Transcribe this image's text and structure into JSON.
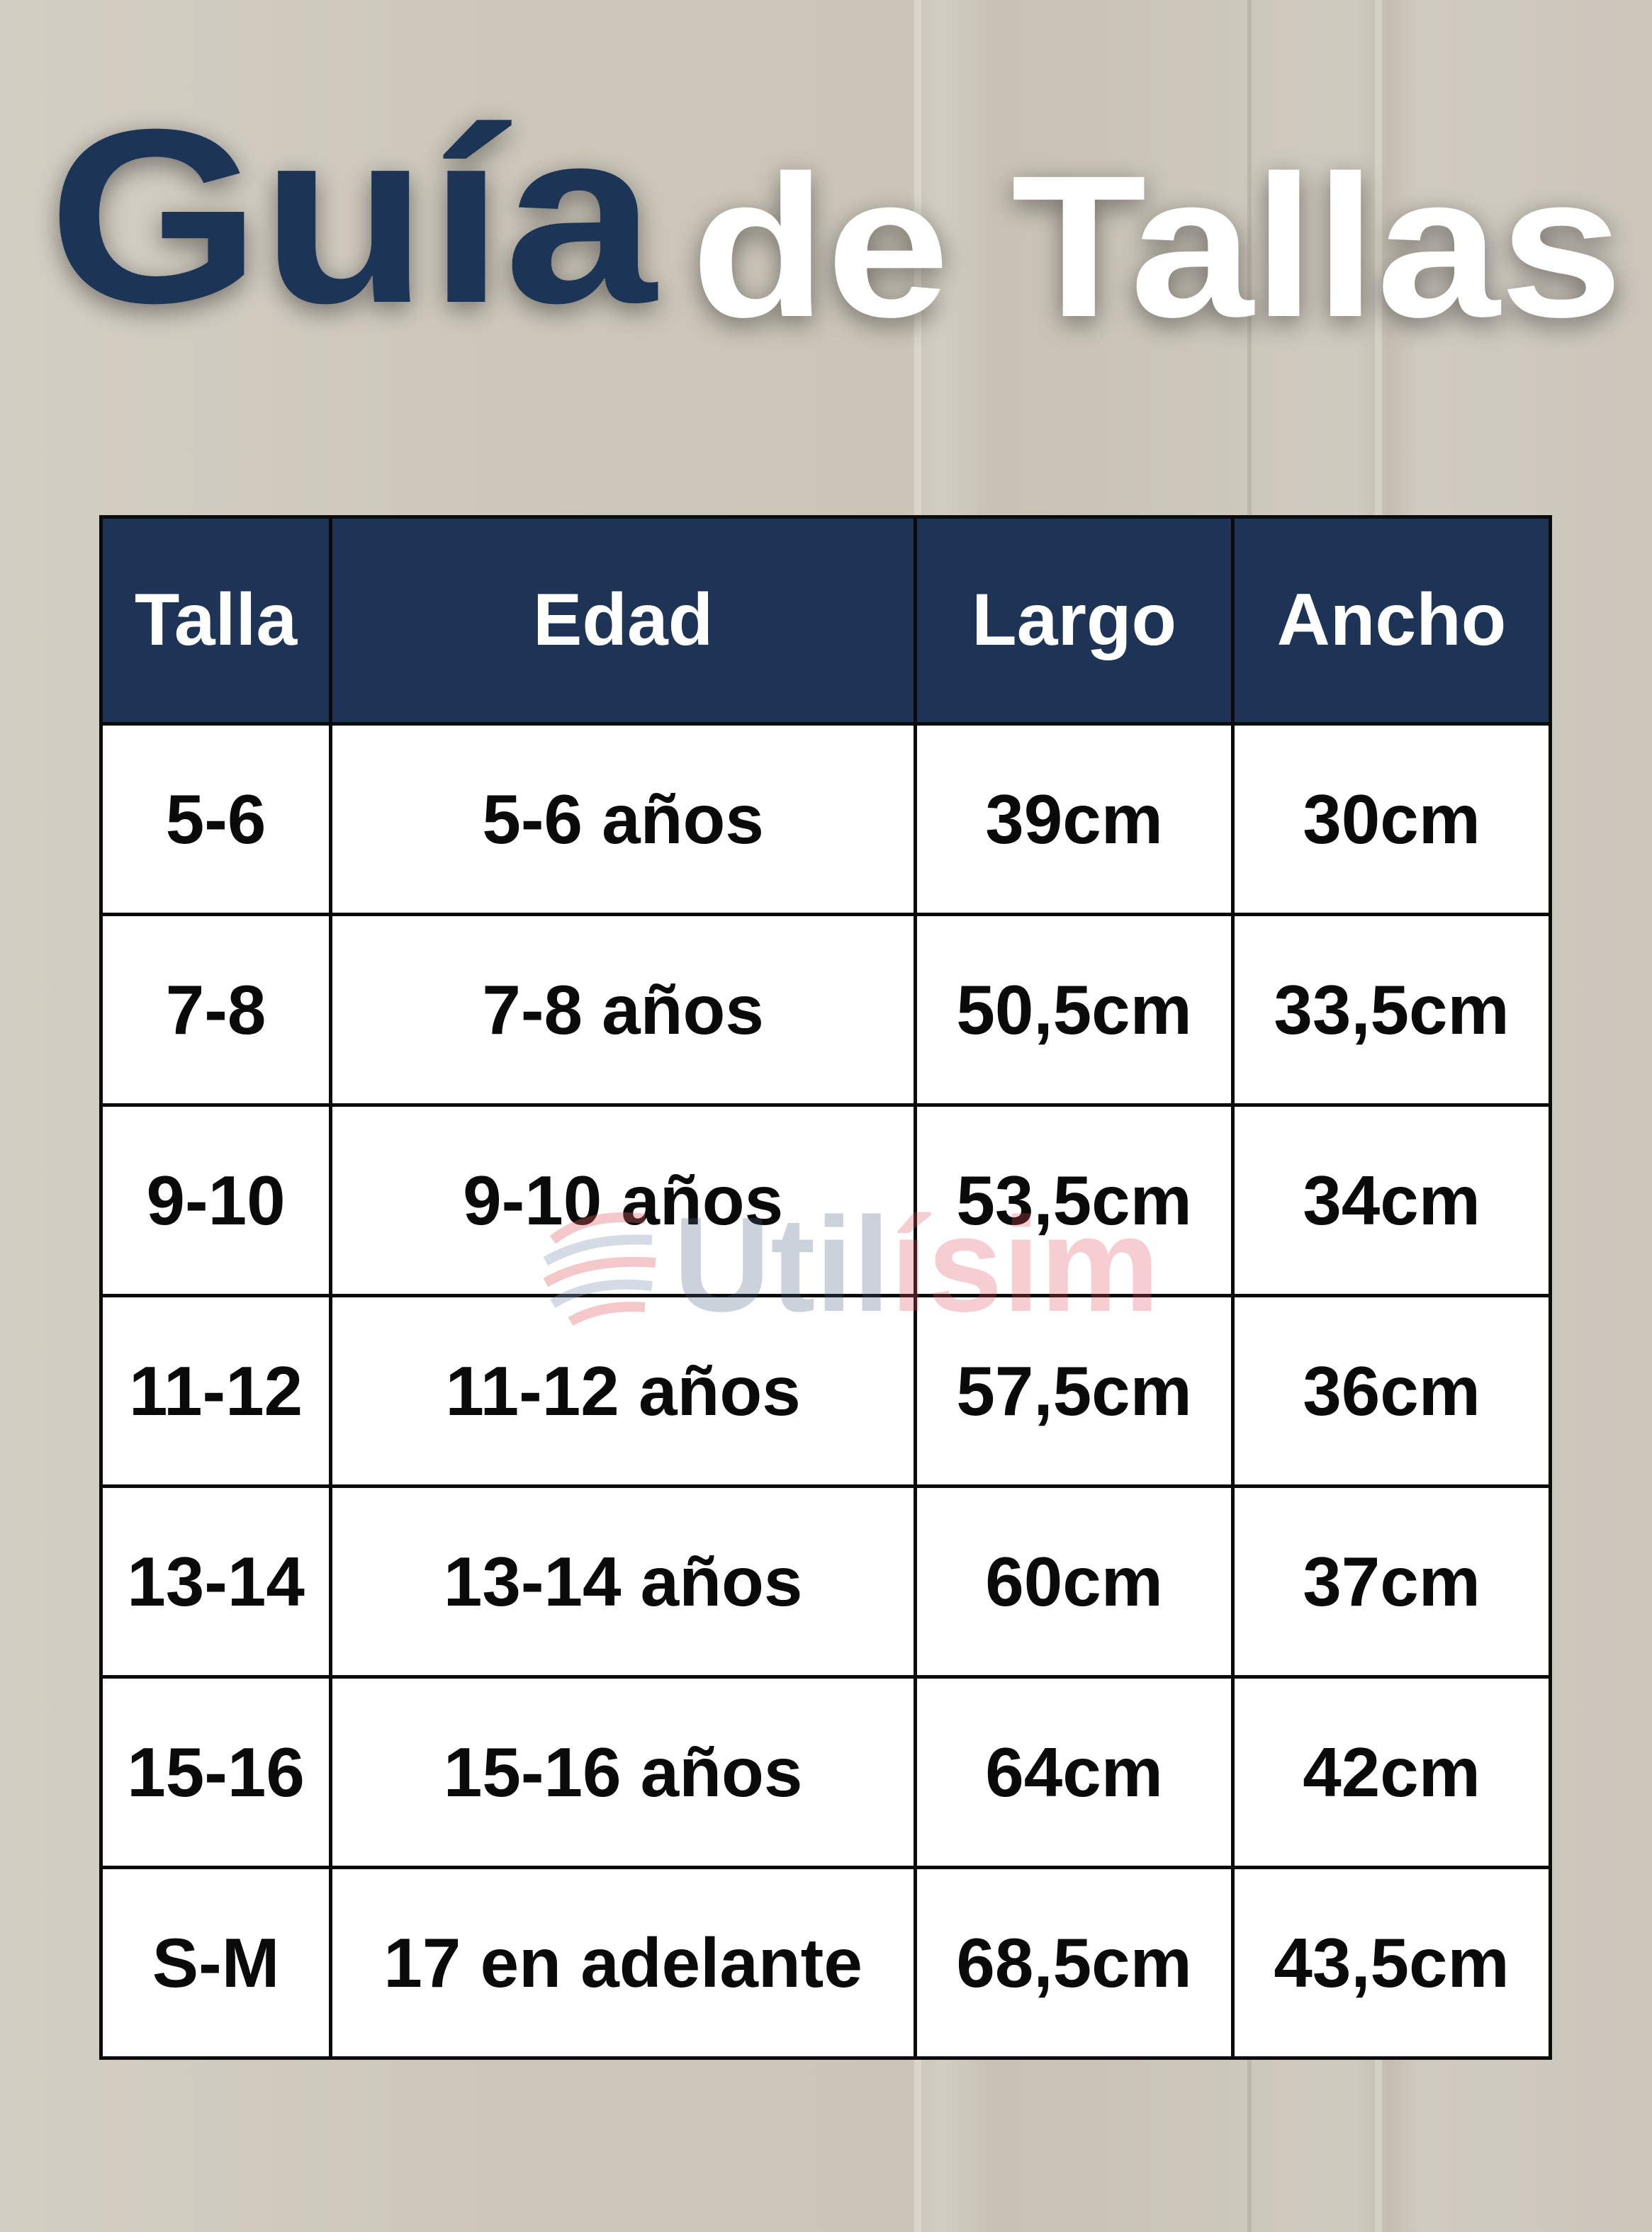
{
  "title": {
    "part1": "Guía",
    "part2": "de Tallas"
  },
  "colors": {
    "accent": "#1e3456",
    "title_secondary": "#ffffff",
    "text": "#0a0a0a"
  },
  "table": {
    "headers": [
      "Talla",
      "Edad",
      "Largo",
      "Ancho"
    ],
    "rows": [
      [
        "5-6",
        "5-6 años",
        "39cm",
        "30cm"
      ],
      [
        "7-8",
        "7-8 años",
        "50,5cm",
        "33,5cm"
      ],
      [
        "9-10",
        "9-10 años",
        "53,5cm",
        "34cm"
      ],
      [
        "11-12",
        "11-12 años",
        "57,5cm",
        "36cm"
      ],
      [
        "13-14",
        "13-14 años",
        "60cm",
        "37cm"
      ],
      [
        "15-16",
        "15-16 años",
        "64cm",
        "42cm"
      ],
      [
        "S-M",
        "17 en adelante",
        "68,5cm",
        "43,5cm"
      ]
    ]
  },
  "watermark": {
    "part1": "Util",
    "part2": "ísimo",
    "icon": "globe-arrows-icon"
  }
}
